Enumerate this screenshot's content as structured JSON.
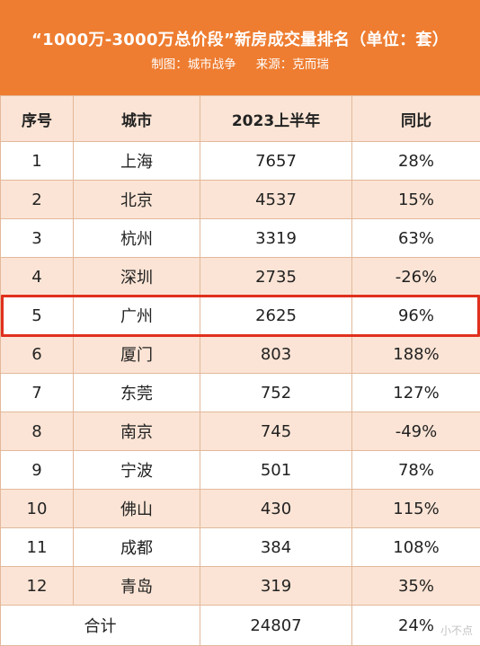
{
  "header": {
    "title": "“1000万-3000万总价段”新房成交量排名（单位：套）",
    "subtitle_credit": "制图：城市战争",
    "subtitle_source": "来源：克而瑞",
    "background_color": "#ee7d31"
  },
  "chart_data": {
    "type": "table",
    "title": "“1000万-3000万总价段”新房成交量排名（单位：套）",
    "columns": [
      "序号",
      "城市",
      "2023上半年",
      "同比"
    ],
    "rows": [
      {
        "rank": "1",
        "city": "上海",
        "volume": "7657",
        "yoy": "28%"
      },
      {
        "rank": "2",
        "city": "北京",
        "volume": "4537",
        "yoy": "15%"
      },
      {
        "rank": "3",
        "city": "杭州",
        "volume": "3319",
        "yoy": "63%"
      },
      {
        "rank": "4",
        "city": "深圳",
        "volume": "2735",
        "yoy": "-26%"
      },
      {
        "rank": "5",
        "city": "广州",
        "volume": "2625",
        "yoy": "96%"
      },
      {
        "rank": "6",
        "city": "厦门",
        "volume": "803",
        "yoy": "188%"
      },
      {
        "rank": "7",
        "city": "东莞",
        "volume": "752",
        "yoy": "127%"
      },
      {
        "rank": "8",
        "city": "南京",
        "volume": "745",
        "yoy": "-49%"
      },
      {
        "rank": "9",
        "city": "宁波",
        "volume": "501",
        "yoy": "78%"
      },
      {
        "rank": "10",
        "city": "佛山",
        "volume": "430",
        "yoy": "115%"
      },
      {
        "rank": "11",
        "city": "成都",
        "volume": "384",
        "yoy": "108%"
      },
      {
        "rank": "12",
        "city": "青岛",
        "volume": "319",
        "yoy": "35%"
      }
    ],
    "total": {
      "label": "合计",
      "volume": "24807",
      "yoy": "24%"
    },
    "highlighted_rank": "5",
    "highlight_color": "#e0301e",
    "stripe_color": "#fbe4d5"
  },
  "watermark": "小不点"
}
